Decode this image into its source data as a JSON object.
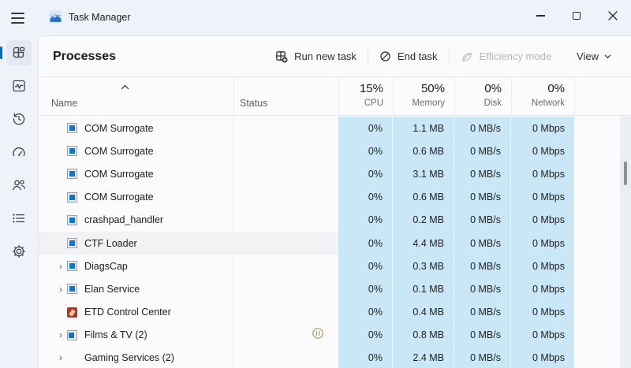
{
  "titlebar": {
    "title": "Task Manager",
    "menu_icon": "hamburger-menu-icon",
    "app_icon": "task-manager-logo",
    "controls": [
      "minimize",
      "maximize",
      "close"
    ]
  },
  "sidebar": {
    "items": [
      {
        "id": "processes",
        "icon": "processes-icon",
        "selected": true
      },
      {
        "id": "performance",
        "icon": "performance-icon",
        "selected": false
      },
      {
        "id": "app-history",
        "icon": "app-history-icon",
        "selected": false
      },
      {
        "id": "startup-apps",
        "icon": "startup-apps-icon",
        "selected": false
      },
      {
        "id": "users",
        "icon": "users-icon",
        "selected": false
      },
      {
        "id": "details",
        "icon": "details-icon",
        "selected": false
      },
      {
        "id": "services",
        "icon": "services-icon",
        "selected": false
      }
    ]
  },
  "toolbar": {
    "page_title": "Processes",
    "run_new_task": "Run new task",
    "end_task": "End task",
    "efficiency_mode": "Efficiency mode",
    "efficiency_mode_disabled": true,
    "view": "View"
  },
  "table": {
    "headers": {
      "name": "Name",
      "status": "Status",
      "cpu": {
        "value": "15%",
        "label": "CPU"
      },
      "memory": {
        "value": "50%",
        "label": "Memory"
      },
      "disk": {
        "value": "0%",
        "label": "Disk"
      },
      "network": {
        "value": "0%",
        "label": "Network"
      }
    },
    "sort": {
      "column": "name",
      "direction": "ascending"
    },
    "rows": [
      {
        "name": "COM Surrogate",
        "icon": "app",
        "expandable": false,
        "status": "",
        "cpu": "0%",
        "memory": "1.1 MB",
        "disk": "0 MB/s",
        "network": "0 Mbps",
        "highlighted": false
      },
      {
        "name": "COM Surrogate",
        "icon": "app",
        "expandable": false,
        "status": "",
        "cpu": "0%",
        "memory": "0.6 MB",
        "disk": "0 MB/s",
        "network": "0 Mbps",
        "highlighted": false
      },
      {
        "name": "COM Surrogate",
        "icon": "app",
        "expandable": false,
        "status": "",
        "cpu": "0%",
        "memory": "3.1 MB",
        "disk": "0 MB/s",
        "network": "0 Mbps",
        "highlighted": false
      },
      {
        "name": "COM Surrogate",
        "icon": "app",
        "expandable": false,
        "status": "",
        "cpu": "0%",
        "memory": "0.6 MB",
        "disk": "0 MB/s",
        "network": "0 Mbps",
        "highlighted": false
      },
      {
        "name": "crashpad_handler",
        "icon": "app",
        "expandable": false,
        "status": "",
        "cpu": "0%",
        "memory": "0.2 MB",
        "disk": "0 MB/s",
        "network": "0 Mbps",
        "highlighted": false
      },
      {
        "name": "CTF Loader",
        "icon": "app",
        "expandable": false,
        "status": "",
        "cpu": "0%",
        "memory": "4.4 MB",
        "disk": "0 MB/s",
        "network": "0 Mbps",
        "highlighted": true
      },
      {
        "name": "DiagsCap",
        "icon": "app",
        "expandable": true,
        "status": "",
        "cpu": "0%",
        "memory": "0.3 MB",
        "disk": "0 MB/s",
        "network": "0 Mbps",
        "highlighted": false
      },
      {
        "name": "Elan Service",
        "icon": "app",
        "expandable": true,
        "status": "",
        "cpu": "0%",
        "memory": "0.1 MB",
        "disk": "0 MB/s",
        "network": "0 Mbps",
        "highlighted": false
      },
      {
        "name": "ETD Control Center",
        "icon": "etd",
        "expandable": false,
        "status": "",
        "cpu": "0%",
        "memory": "0.4 MB",
        "disk": "0 MB/s",
        "network": "0 Mbps",
        "highlighted": false
      },
      {
        "name": "Films & TV (2)",
        "icon": "films",
        "expandable": true,
        "status": "suspended",
        "cpu": "0%",
        "memory": "0.8 MB",
        "disk": "0 MB/s",
        "network": "0 Mbps",
        "highlighted": false
      },
      {
        "name": "Gaming Services (2)",
        "icon": "none",
        "expandable": true,
        "status": "",
        "cpu": "0%",
        "memory": "2.4 MB",
        "disk": "0 MB/s",
        "network": "0 Mbps",
        "highlighted": false
      }
    ]
  },
  "colors": {
    "accent": "#0067c0",
    "heatmap_cell": "#c9e7f6",
    "suspended_icon": "#a39a63",
    "mica_background": "#eff3f9"
  }
}
